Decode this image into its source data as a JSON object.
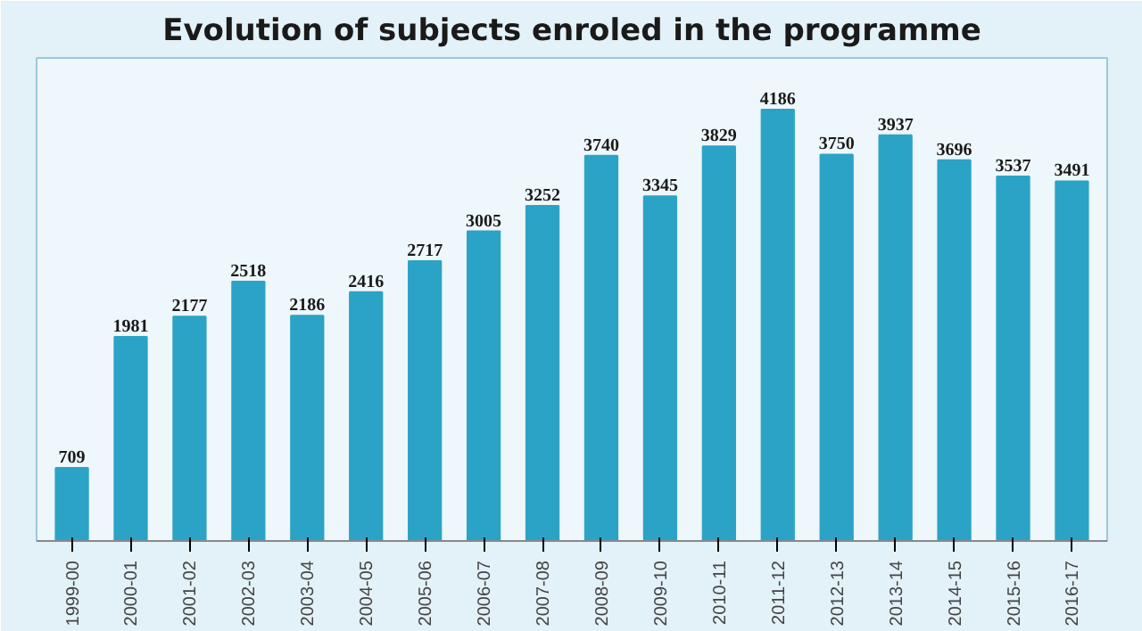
{
  "chart_data": {
    "type": "bar",
    "title": "Evolution of subjects enroled in the programme",
    "categories": [
      "1999-00",
      "2000-01",
      "2001-02",
      "2002-03",
      "2003-04",
      "2004-05",
      "2005-06",
      "2006-07",
      "2007-08",
      "2008-09",
      "2009-10",
      "2010-11",
      "2011-12",
      "2012-13",
      "2013-14",
      "2014-15",
      "2015-16",
      "2016-17"
    ],
    "values": [
      709,
      1981,
      2177,
      2518,
      2186,
      2416,
      2717,
      3005,
      3252,
      3740,
      3345,
      3829,
      4186,
      3750,
      3937,
      3696,
      3537,
      3491
    ],
    "color": "#2ba3c6",
    "data_labels": true,
    "grid": false
  }
}
